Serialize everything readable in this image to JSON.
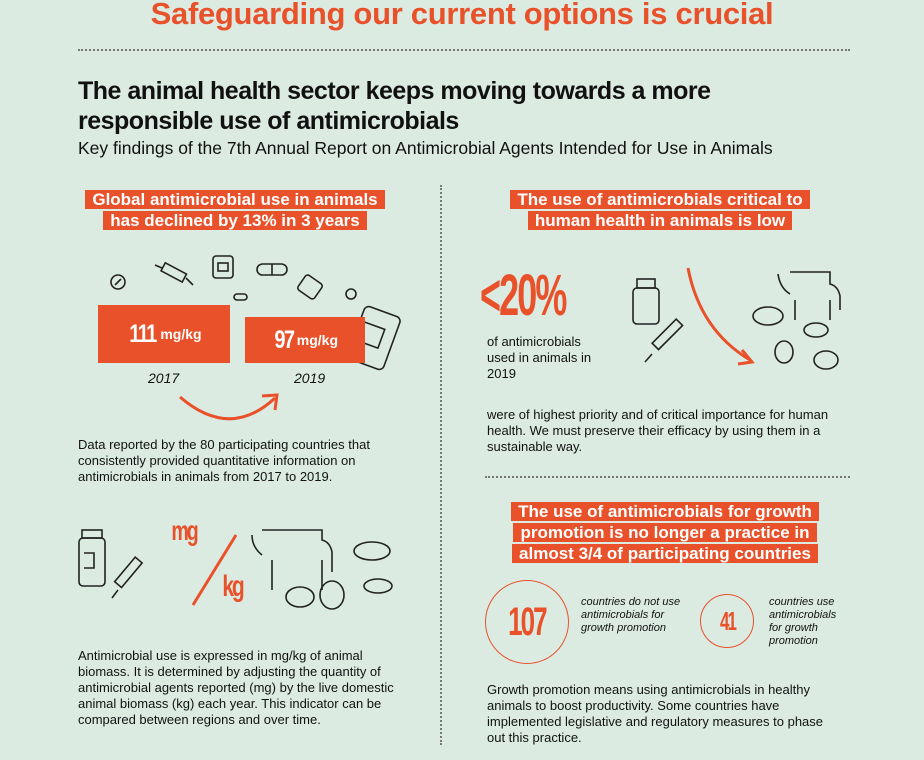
{
  "title": "Safeguarding our current options is crucial",
  "heading": {
    "line1": "The animal health sector keeps moving towards a more",
    "line2": "responsible use of antimicrobials"
  },
  "subtitle": "Key findings of the 7th Annual Report on Antimicrobial Agents Intended for Use in Animals",
  "colors": {
    "accent": "#e8512a",
    "background": "#dcebe2"
  },
  "left": {
    "banner": {
      "line1": "Global antimicrobial use in animals",
      "line2": "has declined by 13% in 3 years"
    },
    "bars": [
      {
        "value": "111",
        "unit": "mg/kg",
        "year": "2017"
      },
      {
        "value": "97",
        "unit": "mg/kg",
        "year": "2019"
      }
    ],
    "para1": "Data reported by the 80 participating countries that consistently provided quantitative information on antimicrobials in animals from 2017 to 2019.",
    "unit_graphic": {
      "top": "mg",
      "bottom": "kg"
    },
    "para2": "Antimicrobial use is expressed in mg/kg of animal biomass. It is determined by adjusting the quantity of antimicrobial agents reported (mg) by the live domestic animal biomass (kg) each year. This indicator can be compared between regions and over time."
  },
  "right": {
    "banner1": {
      "line1": "The use of antimicrobials critical  to",
      "line2": "human health in animals is low"
    },
    "stat": {
      "value": "<20%",
      "caption": "of antimicrobials used in animals in 2019"
    },
    "para1": "were of highest priority and of critical importance for human health. We must preserve their efficacy by using them in a sustainable way.",
    "banner2": {
      "line1": "The use of antimicrobials for growth",
      "line2": "promotion is no longer a practice in",
      "line3": "almost 3/4 of participating countries"
    },
    "circles": [
      {
        "value": "107",
        "caption": "countries do not use antimicrobials for growth promotion"
      },
      {
        "value": "41",
        "caption": "countries use antimicrobials for growth promotion"
      }
    ],
    "para2": "Growth promotion means using antimicrobials in healthy animals to boost productivity. Some countries have implemented legislative and regulatory measures to phase out this practice."
  }
}
